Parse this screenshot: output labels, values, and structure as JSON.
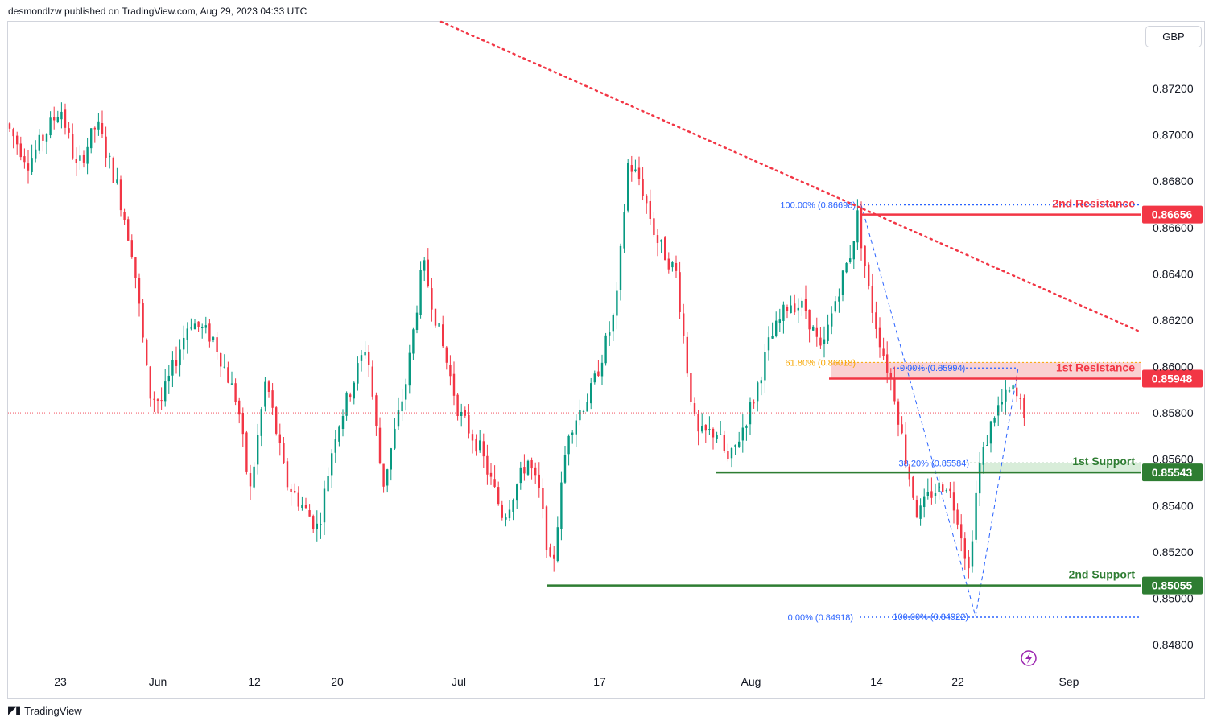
{
  "header": {
    "text": "desmondlzw published on TradingView.com, Aug 29, 2023 04:33 UTC"
  },
  "currency": "GBP",
  "footer": {
    "logo_text": "TradingView",
    "icon": "tradingview-logo-icon"
  },
  "colors": {
    "up": "#089981",
    "down": "#f23645",
    "resistance": "#f23645",
    "support": "#2e7d32",
    "trend": "#f23645",
    "fib": "#2962ff",
    "fib_orange": "#f7a600",
    "zone": "#f8c1c3",
    "support_zone": "#c8e6c9"
  },
  "chart_data": {
    "type": "candlestick",
    "instrument_currency": "GBP",
    "ylim": [
      0.8472,
      0.8738
    ],
    "y_ticks": [
      "0.87200",
      "0.87000",
      "0.86800",
      "0.86600",
      "0.86400",
      "0.86200",
      "0.86000",
      "0.85800",
      "0.85600",
      "0.85400",
      "0.85200",
      "0.85000",
      "0.84800"
    ],
    "x_ticks": [
      "23",
      "Jun",
      "12",
      "20",
      "Jul",
      "17",
      "Aug",
      "14",
      "22",
      "Sep"
    ],
    "levels": [
      {
        "name": "2nd Resistance",
        "value": 0.86656,
        "label": "0.86656",
        "kind": "resistance"
      },
      {
        "name": "1st Resistance",
        "value": 0.85948,
        "label": "0.85948",
        "kind": "resistance"
      },
      {
        "name": "1st Support",
        "value": 0.85543,
        "label": "0.85543",
        "kind": "support"
      },
      {
        "name": "2nd Support",
        "value": 0.85055,
        "label": "0.85055",
        "kind": "support"
      }
    ],
    "fib_labels": [
      {
        "text": "100.00% (0.86698)",
        "value": 0.86698
      },
      {
        "text": "61.80% (0.86018)",
        "value": 0.86018
      },
      {
        "text": "0.00% (0.85994)",
        "value": 0.85994
      },
      {
        "text": "38.20% (0.85584)",
        "value": 0.85584
      },
      {
        "text": "0.00% (0.84918)",
        "value": 0.84918
      },
      {
        "text": "100.00% (0.84922)",
        "value": 0.84922
      }
    ],
    "last_price": 0.858,
    "trendline": {
      "style": "dotted"
    }
  }
}
